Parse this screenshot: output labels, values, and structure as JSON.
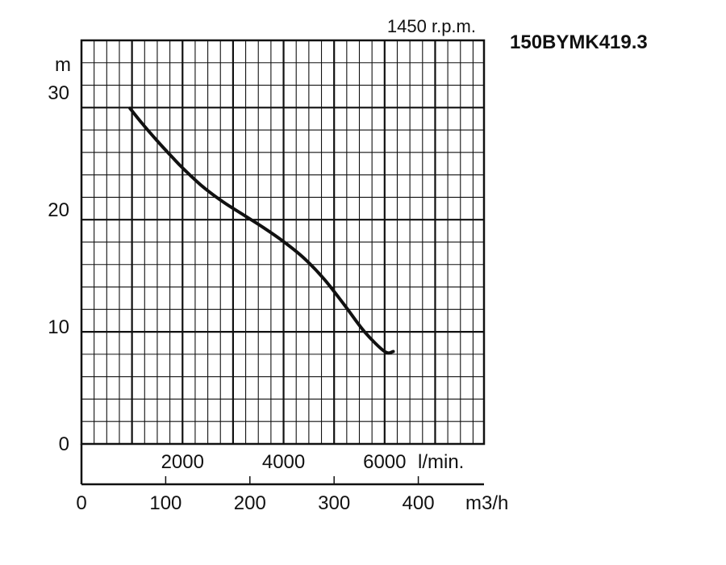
{
  "chart_data": {
    "type": "line",
    "title": "150BYMK419.3",
    "speed_label": "1450 r.p.m.",
    "ylabel": "m",
    "ylim": [
      0,
      34.5
    ],
    "yticks": [
      0,
      10,
      20,
      30
    ],
    "x_lpm": {
      "unit_label": "l/min.",
      "ticks": [
        2000,
        4000,
        6000
      ],
      "tick_labels": [
        "2000",
        "4000",
        "6000"
      ]
    },
    "x_m3h": {
      "xlabel": "m3/h",
      "xlim": [
        0,
        478
      ],
      "ticks": [
        0,
        100,
        200,
        300,
        400
      ],
      "tick_labels": [
        "0",
        "100",
        "200",
        "300",
        "400"
      ]
    },
    "grid": true,
    "series": [
      {
        "values_x_lpm": [
          960,
          1200,
          1500,
          1800,
          2000,
          2400,
          2800,
          3200,
          3600,
          4000,
          4400,
          4800,
          5200,
          5600,
          6000,
          6170
        ],
        "values_y_m": [
          28.7,
          27.4,
          25.9,
          24.5,
          23.6,
          22.0,
          20.7,
          19.6,
          18.5,
          17.3,
          15.9,
          14.1,
          11.9,
          9.6,
          7.9,
          7.9
        ]
      }
    ]
  }
}
